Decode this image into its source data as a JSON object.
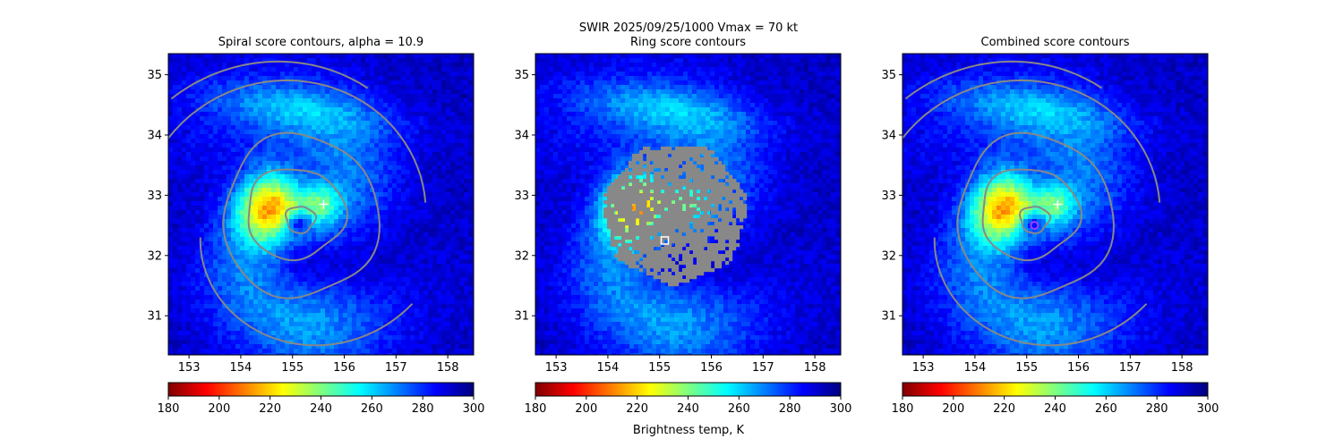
{
  "figure": {
    "suptitle": "SWIR  2025/09/25/1000    Vmax = 70 kt",
    "colorbar_label": "Brightness temp, K"
  },
  "colors": {
    "contour": "#888888",
    "background": "#ffffff",
    "colormap": "jet_reversed",
    "colormap_stops": [
      "#7f0000",
      "#ff0000",
      "#ff7f00",
      "#ffff00",
      "#7fff7f",
      "#00ffff",
      "#007fff",
      "#0000ff",
      "#00007f"
    ]
  },
  "chart_data": [
    {
      "type": "heatmap",
      "title": "Spiral score contours, alpha = 10.9",
      "xlim": [
        152.6,
        158.5
      ],
      "ylim": [
        30.35,
        35.35
      ],
      "xticks": [
        "153",
        "154",
        "155",
        "156",
        "157",
        "158"
      ],
      "yticks": [
        "31",
        "32",
        "33",
        "34",
        "35"
      ],
      "colorbar": {
        "min": 180,
        "max": 300,
        "ticks": [
          "180",
          "200",
          "220",
          "240",
          "260",
          "280",
          "300"
        ]
      },
      "center_lon": 155.1,
      "center_lat": 32.55,
      "markers": [
        {
          "symbol": "plus",
          "lon": 155.6,
          "lat": 32.85,
          "color": "#ffffff"
        }
      ]
    },
    {
      "type": "heatmap",
      "title": "Ring score contours",
      "xlim": [
        152.6,
        158.5
      ],
      "ylim": [
        30.35,
        35.35
      ],
      "xticks": [
        "153",
        "154",
        "155",
        "156",
        "157",
        "158"
      ],
      "yticks": [
        "31",
        "32",
        "33",
        "34",
        "35"
      ],
      "colorbar": {
        "min": 180,
        "max": 300,
        "ticks": [
          "180",
          "200",
          "220",
          "240",
          "260",
          "280",
          "300"
        ]
      },
      "center_lon": 155.1,
      "center_lat": 32.55,
      "ring_region": {
        "lon": 155.3,
        "lat": 32.7,
        "radius_deg": 1.15
      },
      "markers": [
        {
          "symbol": "square",
          "lon": 155.1,
          "lat": 32.25,
          "color": "#ffffff"
        }
      ]
    },
    {
      "type": "heatmap",
      "title": "Combined score contours",
      "xlim": [
        152.6,
        158.5
      ],
      "ylim": [
        30.35,
        35.35
      ],
      "xticks": [
        "153",
        "154",
        "155",
        "156",
        "157",
        "158"
      ],
      "yticks": [
        "31",
        "32",
        "33",
        "34",
        "35"
      ],
      "colorbar": {
        "min": 180,
        "max": 300,
        "ticks": [
          "180",
          "200",
          "220",
          "240",
          "260",
          "280",
          "300"
        ]
      },
      "center_lon": 155.1,
      "center_lat": 32.55,
      "markers": [
        {
          "symbol": "plus",
          "lon": 155.6,
          "lat": 32.85,
          "color": "#ffffff"
        },
        {
          "symbol": "circle",
          "lon": 155.15,
          "lat": 32.5,
          "color": "#a040ff"
        }
      ]
    }
  ]
}
